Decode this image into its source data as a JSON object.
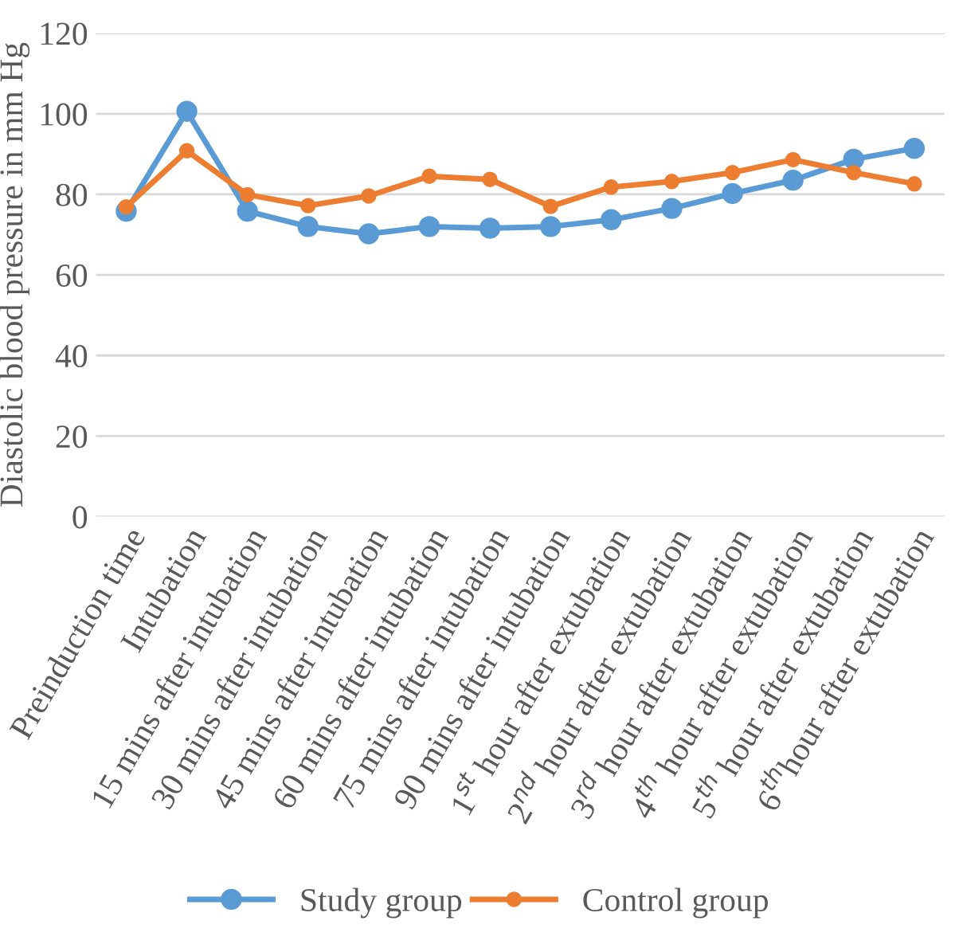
{
  "chart_data": {
    "type": "line",
    "ylabel": "Diastolic blood pressure in mm Hg",
    "categories": [
      "Preinduction time",
      "Intubation",
      "15 mins after intubation",
      "30 mins after intubation",
      "45 mins after intubation",
      "60 mins after intubation",
      "75 mins after intubation",
      "90 mins after intubation",
      "1$^{st}$ hour after extubation",
      "2$^{nd}$ hour after extubation",
      "3$^{rd}$ hour after extubation",
      "4$^{th}$ hour after extubation",
      "5$^{th}$ hour after extubation",
      "6$^{th}$hour after extubation"
    ],
    "series": [
      {
        "name": "Study group",
        "color": "#5b9bd5",
        "values": [
          75.8,
          100.6,
          75.8,
          72,
          70.2,
          72,
          71.6,
          72,
          73.7,
          76.5,
          80.2,
          83.5,
          88.7,
          91.4
        ]
      },
      {
        "name": "Control group",
        "color": "#ed7d31",
        "values": [
          76.9,
          90.8,
          79.9,
          77.2,
          79.6,
          84.5,
          83.7,
          77,
          81.8,
          83.2,
          85.4,
          88.6,
          85.4,
          82.6
        ]
      }
    ],
    "ylim": [
      0,
      120
    ],
    "yticks": [
      0,
      20,
      40,
      60,
      80,
      100,
      120
    ],
    "grid": "y",
    "legend": "bottom",
    "marker": "circle",
    "line_style": "solid"
  }
}
